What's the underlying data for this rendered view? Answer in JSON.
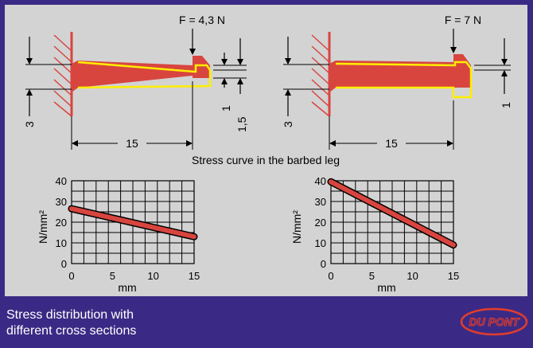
{
  "diagram": {
    "left": {
      "force_label": "F = 4,3 N",
      "length_label": "15",
      "thickness_root": "3",
      "dim_a": "1",
      "dim_b": "1,5"
    },
    "right": {
      "force_label": "F = 7 N",
      "length_label": "15",
      "thickness_root": "3",
      "dim_a": "1"
    },
    "section_title": "Stress curve in the barbed leg"
  },
  "chart_data": [
    {
      "type": "line",
      "xlabel": "mm",
      "ylabel": "N/mm²",
      "xlim": [
        0,
        15
      ],
      "ylim": [
        0,
        40
      ],
      "xticks": [
        "0",
        "5",
        "10",
        "15"
      ],
      "yticks": [
        "0",
        "10",
        "20",
        "30",
        "40"
      ],
      "grid": true,
      "series": [
        {
          "x": [
            0,
            15
          ],
          "y": [
            26.5,
            13
          ],
          "color": "#d8453f"
        }
      ]
    },
    {
      "type": "line",
      "xlabel": "mm",
      "ylabel": "N/mm²",
      "xlim": [
        0,
        15
      ],
      "ylim": [
        0,
        40
      ],
      "xticks": [
        "0",
        "5",
        "10",
        "15"
      ],
      "yticks": [
        "0",
        "10",
        "20",
        "30",
        "40"
      ],
      "grid": true,
      "series": [
        {
          "x": [
            0,
            15
          ],
          "y": [
            39.5,
            9
          ],
          "color": "#d8453f"
        }
      ]
    }
  ],
  "footer": {
    "caption": "Stress distribution with\ndifferent cross sections",
    "logo_text": "DU PONT"
  },
  "colors": {
    "background": "#3b2a85",
    "panel": "#d3d3d3",
    "beam": "#d8453f",
    "outline": "#ffee00"
  }
}
